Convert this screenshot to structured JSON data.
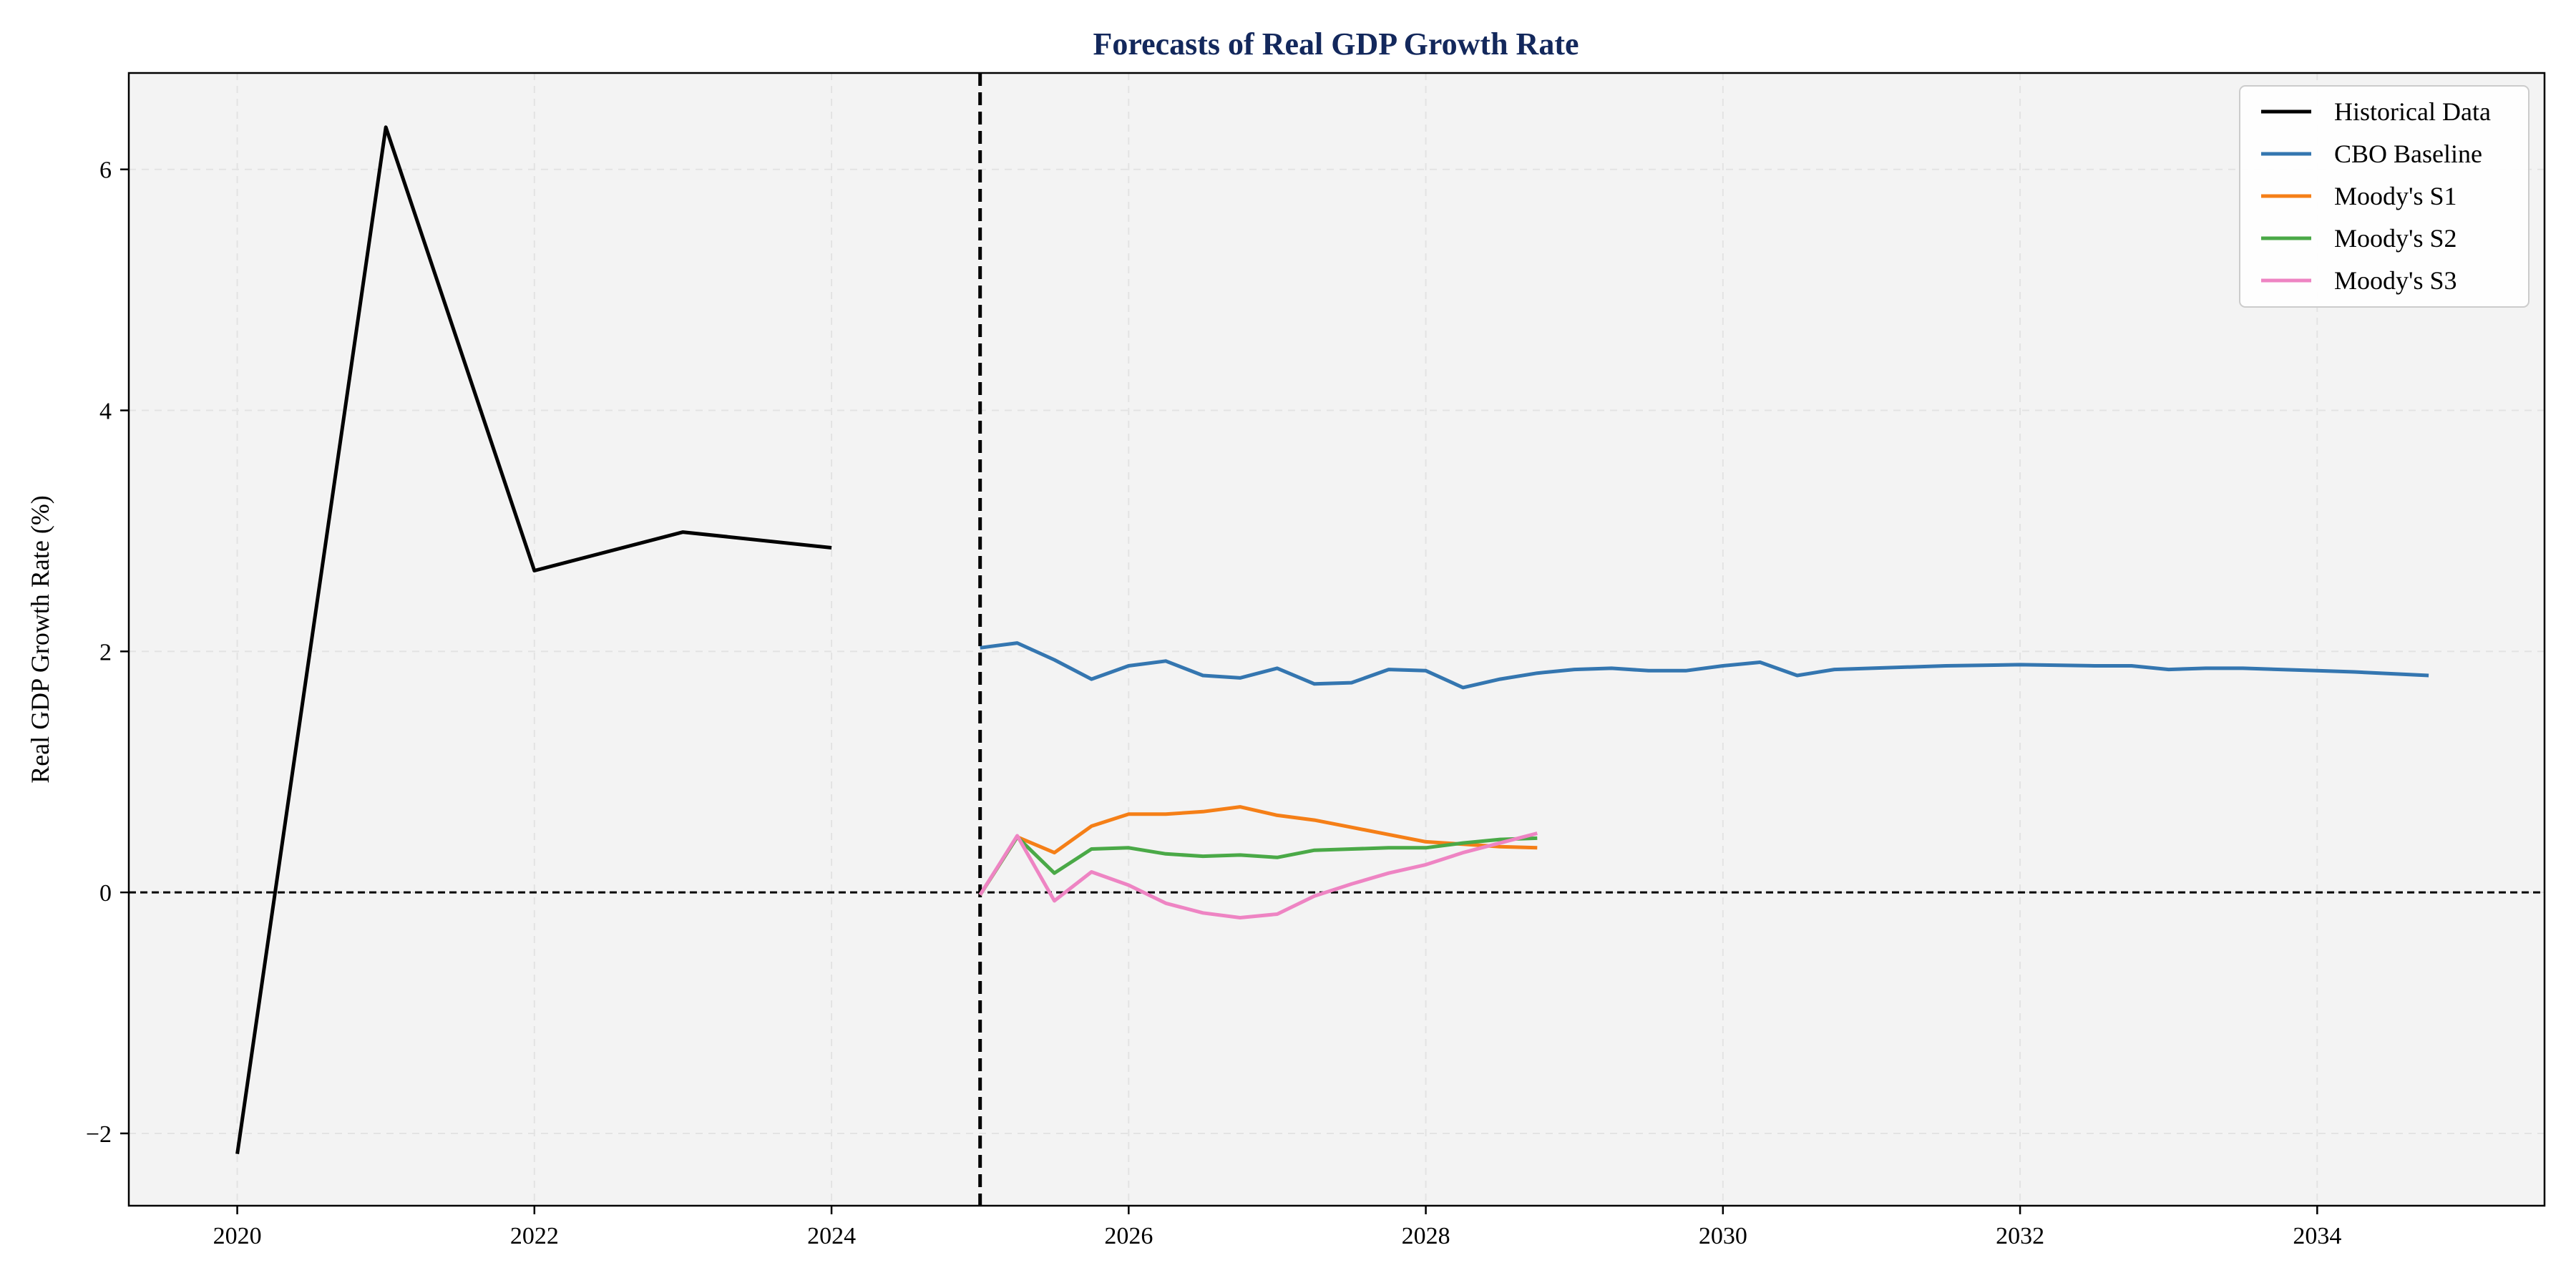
{
  "chart_data": {
    "type": "line",
    "title": "Forecasts of Real GDP Growth Rate",
    "xlabel": "",
    "ylabel": "Real GDP Growth Rate (%)",
    "xlim": [
      2019.27,
      2035.53
    ],
    "ylim": [
      -2.6,
      6.8
    ],
    "x_ticks": [
      2020,
      2022,
      2024,
      2026,
      2028,
      2030,
      2032,
      2034
    ],
    "y_ticks": [
      -2,
      0,
      2,
      4,
      6
    ],
    "y_tick_labels": [
      "−2",
      "0",
      "2",
      "4",
      "6"
    ],
    "grid": true,
    "legend_position": "top-right",
    "reference_lines": [
      {
        "orientation": "vertical",
        "x": 2025.0,
        "style": "dashed",
        "color": "#000000"
      },
      {
        "orientation": "horizontal",
        "y": 0,
        "style": "dashed",
        "color": "#000000"
      }
    ],
    "series": [
      {
        "name": "Historical Data",
        "color": "#000000",
        "x": [
          2020,
          2021,
          2022,
          2023,
          2024
        ],
        "y": [
          -2.17,
          6.35,
          2.67,
          2.99,
          2.86
        ]
      },
      {
        "name": "CBO Baseline",
        "color": "#3476b0",
        "x": [
          2025.0,
          2025.25,
          2025.5,
          2025.75,
          2026.0,
          2026.25,
          2026.5,
          2026.75,
          2027.0,
          2027.25,
          2027.5,
          2027.75,
          2028.0,
          2028.25,
          2028.5,
          2028.75,
          2029.0,
          2029.25,
          2029.5,
          2029.75,
          2030.0,
          2030.25,
          2030.5,
          2030.75,
          2031.0,
          2031.5,
          2032.0,
          2032.5,
          2032.75,
          2033.0,
          2033.25,
          2033.5,
          2034.0,
          2034.25,
          2034.75
        ],
        "y": [
          2.03,
          2.07,
          1.93,
          1.77,
          1.88,
          1.92,
          1.8,
          1.78,
          1.86,
          1.73,
          1.74,
          1.85,
          1.84,
          1.7,
          1.77,
          1.82,
          1.85,
          1.86,
          1.84,
          1.84,
          1.88,
          1.91,
          1.8,
          1.85,
          1.86,
          1.88,
          1.89,
          1.88,
          1.88,
          1.85,
          1.86,
          1.86,
          1.84,
          1.83,
          1.8
        ]
      },
      {
        "name": "Moody's S1",
        "color": "#f57f17",
        "x": [
          2025.0,
          2025.25,
          2025.5,
          2025.75,
          2026.0,
          2026.25,
          2026.5,
          2026.75,
          2027.0,
          2027.25,
          2027.5,
          2027.75,
          2028.0,
          2028.25,
          2028.5,
          2028.75
        ],
        "y": [
          -0.02,
          0.46,
          0.33,
          0.55,
          0.65,
          0.65,
          0.67,
          0.71,
          0.64,
          0.6,
          0.54,
          0.48,
          0.42,
          0.4,
          0.38,
          0.37
        ]
      },
      {
        "name": "Moody's S2",
        "color": "#4aa947",
        "x": [
          2025.0,
          2025.25,
          2025.5,
          2025.75,
          2026.0,
          2026.25,
          2026.5,
          2026.75,
          2027.0,
          2027.25,
          2027.5,
          2027.75,
          2028.0,
          2028.25,
          2028.5,
          2028.75
        ],
        "y": [
          -0.02,
          0.46,
          0.16,
          0.36,
          0.37,
          0.32,
          0.3,
          0.31,
          0.29,
          0.35,
          0.36,
          0.37,
          0.37,
          0.41,
          0.44,
          0.45
        ]
      },
      {
        "name": "Moody's S3",
        "color": "#ee84c3",
        "x": [
          2025.0,
          2025.25,
          2025.5,
          2025.75,
          2026.0,
          2026.25,
          2026.5,
          2026.75,
          2027.0,
          2027.25,
          2027.5,
          2027.75,
          2028.0,
          2028.25,
          2028.5,
          2028.75
        ],
        "y": [
          -0.02,
          0.47,
          -0.07,
          0.17,
          0.06,
          -0.09,
          -0.17,
          -0.21,
          -0.18,
          -0.03,
          0.07,
          0.16,
          0.23,
          0.33,
          0.41,
          0.49
        ]
      }
    ]
  }
}
